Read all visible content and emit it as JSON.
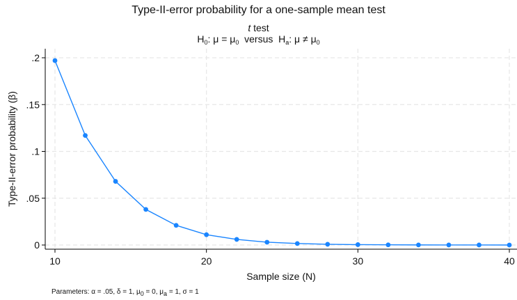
{
  "chart_data": {
    "type": "line",
    "title": "Type-II-error probability for a one-sample mean test",
    "subtitle_test_italic": "t",
    "subtitle_test_rest": " test",
    "hypothesis": {
      "h0_prefix": "H",
      "h0_sub": "0",
      "h0_mid": ": μ = μ",
      "h0_mu_sub": "0",
      "versus": "  versus  ",
      "ha_prefix": "H",
      "ha_sub": "a",
      "ha_mid": ": μ ≠ μ",
      "ha_mu_sub": "0"
    },
    "xlabel": "Sample size (N)",
    "ylabel": "Type-II-error probability (β)",
    "xlim": [
      10,
      40
    ],
    "ylim": [
      0,
      0.2
    ],
    "xticks": [
      10,
      20,
      30,
      40
    ],
    "xtick_labels": [
      "10",
      "20",
      "30",
      "40"
    ],
    "yticks": [
      0,
      0.05,
      0.1,
      0.15,
      0.2
    ],
    "ytick_labels": [
      "0",
      ".05",
      ".1",
      ".15",
      ".2"
    ],
    "grid": true,
    "legend": "none",
    "series": [
      {
        "x": [
          10,
          12,
          14,
          16,
          18,
          20,
          22,
          24,
          26,
          28,
          30,
          32,
          34,
          36,
          38,
          40
        ],
        "values": [
          0.197,
          0.117,
          0.068,
          0.038,
          0.021,
          0.011,
          0.006,
          0.003,
          0.0016,
          0.0008,
          0.0004,
          0.0002,
          0.0001,
          5e-05,
          3e-05,
          1e-05
        ],
        "color": "#1a85ff"
      }
    ],
    "parameters_note": {
      "p1": "Parameters: α = .05, δ = 1, μ",
      "s1": "0",
      "p2": " = 0, μ",
      "s2": "a",
      "p3": " = 1, σ = 1"
    }
  }
}
